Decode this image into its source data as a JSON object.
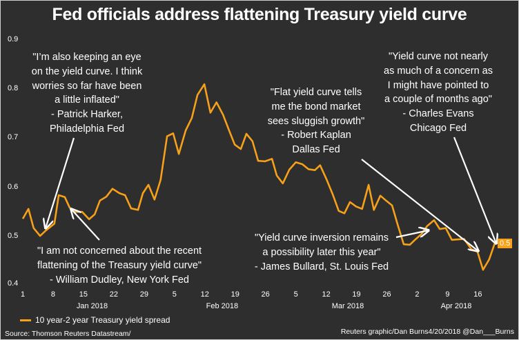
{
  "chart_data": {
    "type": "line",
    "title": "Fed officials address flattening Treasury yield curve",
    "xlabel": "",
    "ylabel": "",
    "ylim": [
      0.4,
      0.9
    ],
    "yticks": [
      "0.9",
      "0.8",
      "0.7",
      "0.6",
      "0.5",
      "0.4"
    ],
    "x_units": "days since Jan 1 2018",
    "xlim": [
      0,
      109
    ],
    "xticks": [
      {
        "day": 0,
        "label": "1"
      },
      {
        "day": 7,
        "label": "8"
      },
      {
        "day": 14,
        "label": "15"
      },
      {
        "day": 21,
        "label": "22"
      },
      {
        "day": 28,
        "label": "29"
      },
      {
        "day": 35,
        "label": "5"
      },
      {
        "day": 42,
        "label": "12"
      },
      {
        "day": 49,
        "label": "19"
      },
      {
        "day": 56,
        "label": "26"
      },
      {
        "day": 63,
        "label": "5"
      },
      {
        "day": 70,
        "label": "12"
      },
      {
        "day": 77,
        "label": "19"
      },
      {
        "day": 84,
        "label": "26"
      },
      {
        "day": 91,
        "label": "2"
      },
      {
        "day": 98,
        "label": "9"
      },
      {
        "day": 105,
        "label": "16"
      }
    ],
    "months": [
      {
        "day": 16,
        "label": "Jan 2018"
      },
      {
        "day": 46,
        "label": "Feb 2018"
      },
      {
        "day": 75,
        "label": "Mar 2018"
      },
      {
        "day": 100,
        "label": "Apr 2018"
      }
    ],
    "series": [
      {
        "name": "10 year-2 year Treasury yield spread",
        "color": "#f7a11a",
        "x": [
          0,
          1.3,
          2.5,
          4,
          5.3,
          7.3,
          8.3,
          9.7,
          10.8,
          11.9,
          13.7,
          15.3,
          16.6,
          17.8,
          19.3,
          20.7,
          22.3,
          23.6,
          25,
          26.6,
          27.7,
          29,
          30.4,
          31.8,
          33.3,
          34.7,
          36,
          37.6,
          39,
          40.3,
          41.9,
          43.3,
          44.7,
          46.2,
          47.6,
          48.9,
          50.3,
          51.6,
          53,
          54.3,
          55.9,
          57.5,
          58.6,
          60,
          61.5,
          63,
          64.5,
          65.9,
          67.4,
          68.6,
          70.1,
          71.5,
          72.9,
          74.2,
          75.5,
          76.9,
          78.3,
          79.8,
          81,
          82.5,
          83.8,
          85.2,
          86.5,
          87.9,
          89.3,
          90.6,
          92,
          93.3,
          94.9,
          96.2,
          97.6,
          99,
          100.5,
          101.8,
          103.5,
          104.9,
          106.2,
          107.6,
          108.9
        ],
        "values": [
          0.536,
          0.556,
          0.517,
          0.501,
          0.512,
          0.526,
          0.584,
          0.58,
          0.559,
          0.55,
          0.55,
          0.535,
          0.545,
          0.573,
          0.581,
          0.597,
          0.588,
          0.584,
          0.557,
          0.554,
          0.588,
          0.605,
          0.575,
          0.615,
          0.704,
          0.71,
          0.668,
          0.716,
          0.741,
          0.788,
          0.81,
          0.752,
          0.773,
          0.748,
          0.716,
          0.687,
          0.678,
          0.709,
          0.694,
          0.654,
          0.653,
          0.658,
          0.624,
          0.608,
          0.636,
          0.651,
          0.647,
          0.637,
          0.635,
          0.645,
          0.616,
          0.586,
          0.552,
          0.547,
          0.57,
          0.561,
          0.556,
          0.605,
          0.554,
          0.583,
          0.573,
          0.563,
          0.524,
          0.484,
          0.483,
          0.494,
          0.505,
          0.521,
          0.533,
          0.515,
          0.517,
          0.493,
          0.494,
          0.495,
          0.474,
          0.469,
          0.432,
          0.453,
          0.486
        ]
      }
    ],
    "end_label": "0.5",
    "annotations": [
      {
        "lines": [
          "\"I’m also keeping an eye",
          "on the yield curve. I think",
          "worries so far have been",
          "a little inflated\"",
          "- Patrick Harker,",
          "Philadelphia Fed"
        ]
      },
      {
        "lines": [
          "\"I am not concerned about the recent",
          "flattening of the Treasury yield curve\"",
          "- William Dudley, New York Fed"
        ]
      },
      {
        "lines": [
          "\"Yield curve inversion remains",
          "a possibility later this year\"",
          "- James Bullard, St. Louis Fed"
        ]
      },
      {
        "lines": [
          "\"Flat yield curve tells",
          "me the bond market",
          "sees sluggish growth\"",
          "- Robert Kaplan",
          "Dallas Fed"
        ]
      },
      {
        "lines": [
          "\"Yield curve not nearly",
          "as much of a concern as",
          "I might have pointed to",
          "a couple of months ago\"",
          "- Charles Evans",
          "Chicago Fed"
        ]
      }
    ],
    "legend": "bottom-left",
    "grid": false
  },
  "footer": {
    "source": "Source: Thomson Reuters Datastream/",
    "credit": "Reuters graphic/Dan Burns4/20/2018 @Dan___Burns"
  }
}
